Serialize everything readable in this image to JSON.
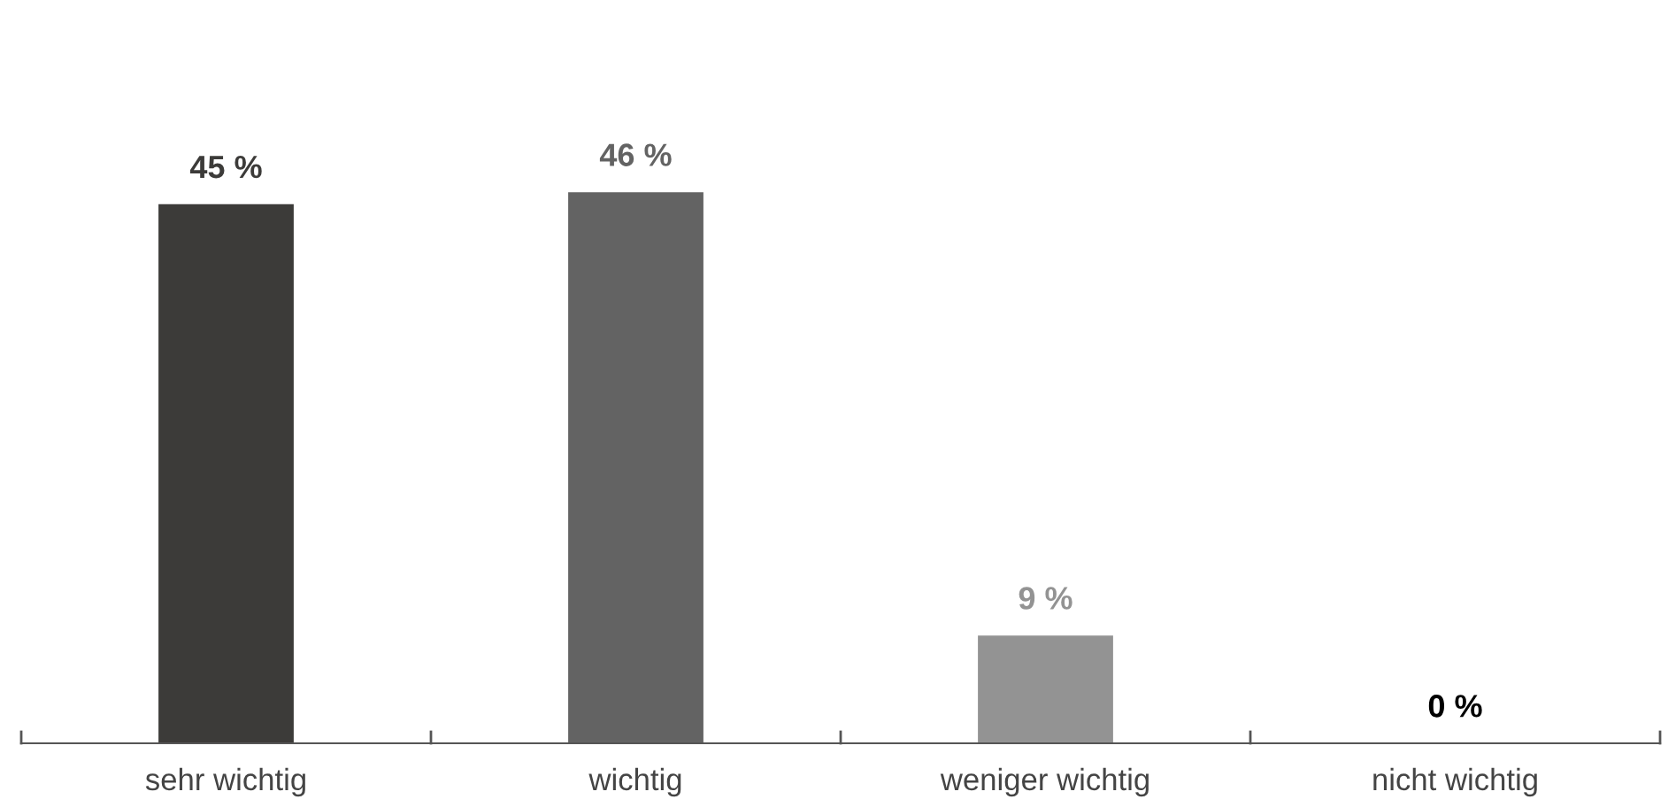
{
  "chart_data": {
    "type": "bar",
    "categories": [
      "sehr wichtig",
      "wichtig",
      "weniger wichtig",
      "nicht wichtig"
    ],
    "values": [
      45,
      46,
      9,
      0
    ],
    "colors": [
      "#3c3b39",
      "#636363",
      "#939393",
      "#000000"
    ],
    "value_labels": [
      "45 %",
      "46 %",
      "9 %",
      "0 %"
    ],
    "grid": false,
    "legend": false
  }
}
